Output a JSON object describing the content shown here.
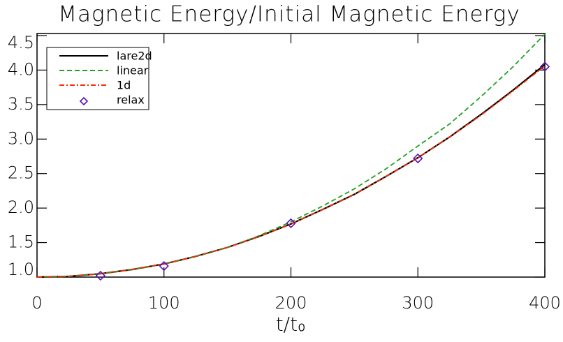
{
  "chart_data": {
    "type": "line",
    "title": "Magnetic Energy/Initial Magnetic Energy",
    "xlabel": "t/t₀",
    "x": [
      0,
      25,
      50,
      75,
      100,
      125,
      150,
      175,
      200,
      225,
      250,
      275,
      300,
      325,
      350,
      375,
      400
    ],
    "series": [
      {
        "name": "lare2d",
        "color": "#000000",
        "dash": "solid",
        "values": [
          1.0,
          1.01,
          1.05,
          1.11,
          1.19,
          1.3,
          1.43,
          1.59,
          1.77,
          1.98,
          2.2,
          2.46,
          2.73,
          3.03,
          3.36,
          3.71,
          4.08
        ]
      },
      {
        "name": "linear",
        "color": "#22a022",
        "dash": "dashed",
        "values": [
          1.0,
          1.01,
          1.05,
          1.11,
          1.19,
          1.3,
          1.43,
          1.6,
          1.8,
          2.03,
          2.28,
          2.57,
          2.9,
          3.22,
          3.62,
          4.05,
          4.52
        ]
      },
      {
        "name": "1d",
        "color": "#ff2a00",
        "dash": "dashdot",
        "values": [
          1.0,
          1.01,
          1.05,
          1.11,
          1.19,
          1.3,
          1.43,
          1.59,
          1.77,
          1.98,
          2.2,
          2.46,
          2.73,
          3.03,
          3.35,
          3.7,
          4.06
        ]
      },
      {
        "name": "relax",
        "color": "#5a10b4",
        "marker": "diamond",
        "x": [
          50,
          100,
          200,
          300,
          400
        ],
        "values": [
          1.02,
          1.16,
          1.78,
          2.72,
          4.05
        ]
      }
    ],
    "xlim": [
      0,
      400
    ],
    "xticks": [
      0,
      100,
      200,
      300,
      400
    ],
    "ylim": [
      1.0,
      4.53
    ],
    "yticks": [
      {
        "value": 1.0,
        "label": "1.0"
      },
      1.5,
      {
        "value": 2.0,
        "label": "2.0"
      },
      2.5,
      {
        "value": 3.0,
        "label": "3.0"
      },
      3.5,
      {
        "value": 4.0,
        "label": "4.0"
      },
      4.5
    ],
    "legend": "upper left"
  }
}
